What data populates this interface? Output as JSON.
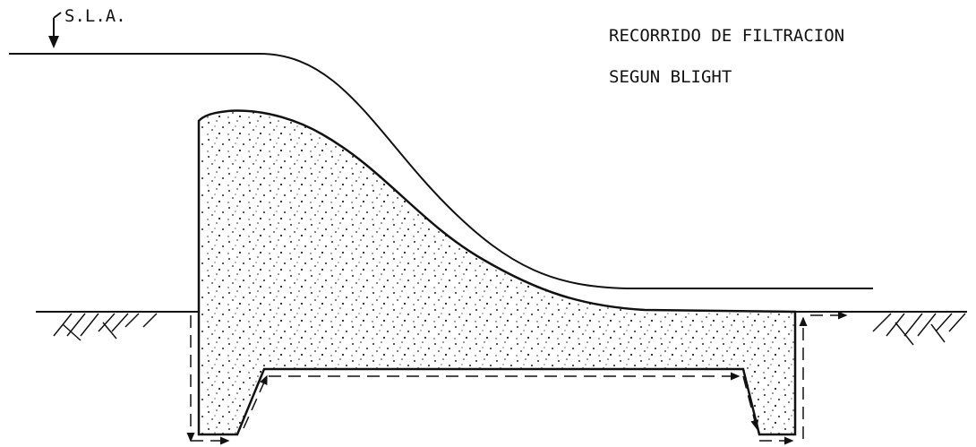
{
  "labels": {
    "sla": "S.L.A.",
    "title_line1": "RECORRIDO DE FILTRACION",
    "title_line2": "SEGUN BLIGHT"
  }
}
